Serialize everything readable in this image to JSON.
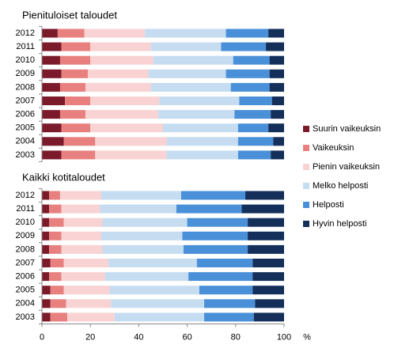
{
  "chart_data": [
    {
      "type": "stacked_bar_horizontal",
      "title": "Pienituloiset taloudet",
      "categories": [
        "2012",
        "2011",
        "2010",
        "2009",
        "2008",
        "2007",
        "2006",
        "2005",
        "2004",
        "2003"
      ],
      "xlim": [
        0,
        100
      ],
      "series": [
        {
          "name": "Suurin vaikeuksin",
          "color": "#7b1a2a",
          "values": [
            6.5,
            8,
            7.5,
            8,
            7.5,
            9.5,
            7.5,
            8,
            9,
            8
          ]
        },
        {
          "name": "Vaikeuksin",
          "color": "#e88080",
          "values": [
            11,
            12,
            12.5,
            11,
            10.5,
            10.5,
            10.5,
            12,
            13,
            14
          ]
        },
        {
          "name": "Pienin vaikeuksin",
          "color": "#f9d3d3",
          "values": [
            25,
            25,
            26,
            25,
            27,
            28.5,
            30,
            30,
            29.5,
            29.5
          ]
        },
        {
          "name": "Melko helposti",
          "color": "#c6dcf0",
          "values": [
            33.5,
            29,
            33,
            32,
            33,
            33,
            31.5,
            31,
            29.5,
            29.5
          ]
        },
        {
          "name": "Helposti",
          "color": "#4a90d9",
          "values": [
            17.5,
            18.5,
            15,
            18,
            16,
            13.5,
            15,
            12.5,
            14.5,
            13.5
          ]
        },
        {
          "name": "Hyvin helposti",
          "color": "#14305a",
          "values": [
            6.5,
            7.5,
            6,
            6,
            6,
            5,
            5.5,
            6.5,
            4.5,
            5.5
          ]
        }
      ]
    },
    {
      "type": "stacked_bar_horizontal",
      "title": "Kaikki kotitaloudet",
      "categories": [
        "2012",
        "2011",
        "2010",
        "2009",
        "2008",
        "2007",
        "2006",
        "2005",
        "2004",
        "2003"
      ],
      "xlim": [
        0,
        100
      ],
      "xticks": [
        0,
        20,
        40,
        60,
        80,
        100
      ],
      "xlabel": "%",
      "series": [
        {
          "values": [
            3,
            3,
            3,
            3,
            3,
            3.5,
            3,
            3.5,
            3.5,
            3.5
          ]
        },
        {
          "values": [
            4.5,
            5,
            6,
            5,
            5,
            5.5,
            5,
            5.5,
            6.5,
            7
          ]
        },
        {
          "values": [
            17,
            16,
            16,
            16.5,
            17,
            18.5,
            18,
            19,
            18.5,
            19.5
          ]
        },
        {
          "values": [
            33,
            31.5,
            35,
            33.5,
            33.5,
            36.5,
            34.5,
            37,
            38.5,
            37
          ]
        },
        {
          "values": [
            26.5,
            27,
            25,
            27,
            26.5,
            23,
            26.5,
            22,
            21,
            20.5
          ]
        },
        {
          "values": [
            16,
            17.5,
            15,
            15,
            15,
            13,
            13,
            13,
            12,
            12.5
          ]
        }
      ]
    }
  ]
}
